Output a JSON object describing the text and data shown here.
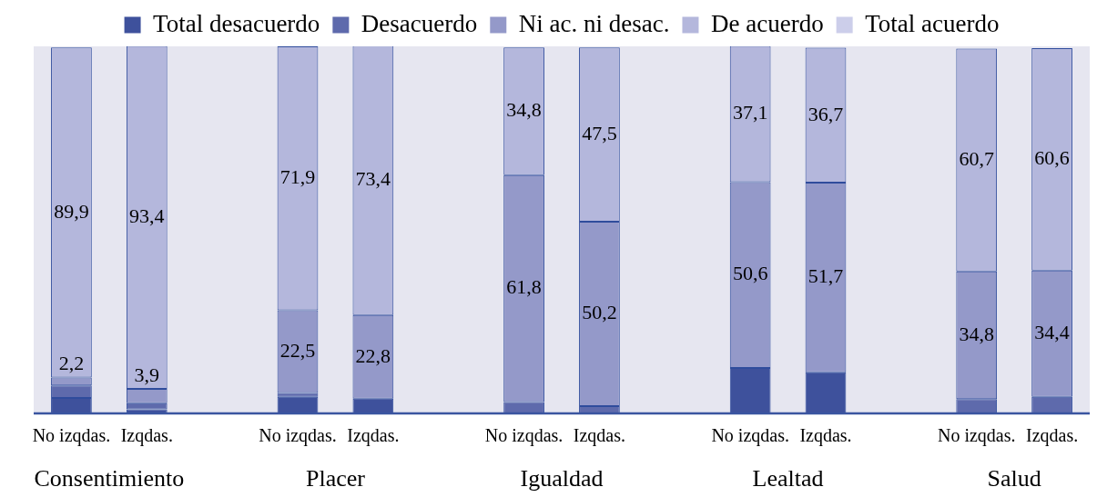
{
  "chart_data": {
    "type": "bar",
    "stacked": true,
    "legend": "top",
    "tick_labels": "x",
    "ylim": [
      0,
      100
    ],
    "categories": [
      "No izqdas.",
      "Izqdas.",
      null,
      "No izqdas.",
      "Izqdas.",
      null,
      "No izqdas.",
      "Izqdas.",
      null,
      "No izqdas.",
      "Izqdas.",
      null,
      "No izqdas.",
      "Izqdas."
    ],
    "annotations": [
      "Consentimiento",
      "Placer",
      "Igualdad",
      "Lealtad",
      "Salud"
    ],
    "series": [
      {
        "name": "Total desacuerdo",
        "color": "#3e519c",
        "values": [
          4.2,
          1.1,
          null,
          4.5,
          4.0,
          null,
          null,
          null,
          null,
          12.4,
          11.2,
          null,
          null,
          null
        ]
      },
      {
        "name": "Desacuerdo",
        "color": "#5e6aac",
        "values": [
          3.4,
          1.7,
          null,
          1.1,
          null,
          null,
          3.1,
          2.0,
          null,
          null,
          null,
          null,
          3.9,
          4.5
        ]
      },
      {
        "name": "Ni ac. ni desac.",
        "color": "#9499c9",
        "values": [
          2.2,
          3.9,
          null,
          22.5,
          22.8,
          null,
          61.8,
          50.2,
          null,
          50.6,
          51.7,
          null,
          34.8,
          34.4
        ],
        "value_labels": [
          "2,2",
          "3,9",
          null,
          "22,5",
          "22,8",
          null,
          "61,8",
          "50,2",
          null,
          "50,6",
          "51,7",
          null,
          "34,8",
          "34,4"
        ]
      },
      {
        "name": "De acuerdo",
        "color": "#b4b7dc",
        "values": [
          89.9,
          93.4,
          null,
          71.9,
          73.4,
          null,
          34.8,
          47.5,
          null,
          37.1,
          36.7,
          null,
          60.7,
          60.6
        ],
        "value_labels": [
          "89,9",
          "93,4",
          null,
          "71,9",
          "73,4",
          null,
          "34,8",
          "47,5",
          null,
          "37,1",
          "36,7",
          null,
          "60,7",
          "60,6"
        ]
      },
      {
        "name": "Total acuerdo",
        "color": "#ccceea",
        "values": [
          null,
          null,
          null,
          null,
          null,
          null,
          null,
          null,
          null,
          null,
          null,
          null,
          null,
          null
        ]
      }
    ]
  }
}
